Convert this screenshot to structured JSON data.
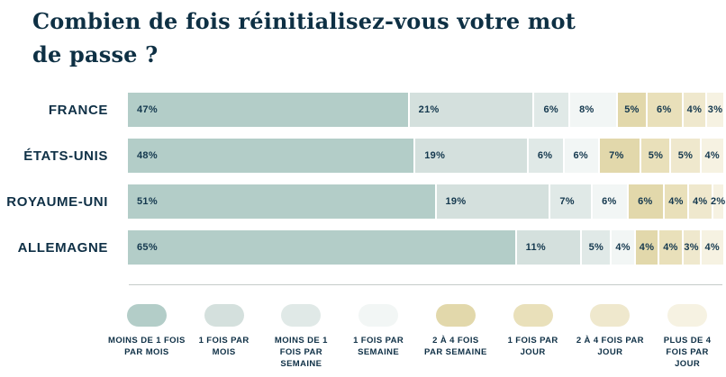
{
  "title_lines": [
    "Combien de fois réinitialisez-vous votre mot",
    "de passe ?"
  ],
  "colors": {
    "title_text": "#0e3044",
    "label_text": "#0f3046",
    "value_text": "#14384e",
    "divider": "#c5cbc9",
    "background": "#ffffff"
  },
  "chart_data": {
    "type": "bar",
    "stacked": true,
    "orientation": "horizontal",
    "title": "Combien de fois réinitialisez-vous votre mot de passe ?",
    "unit": "%",
    "xlim": [
      0,
      100
    ],
    "legend_position": "bottom",
    "categories": [
      "FRANCE",
      "ÉTATS-UNIS",
      "ROYAUME-UNI",
      "ALLEMAGNE"
    ],
    "series": [
      {
        "name": "MOINS DE 1 FOIS PAR MOIS",
        "label_lines": [
          "MOINS DE 1 FOIS",
          "PAR MOIS"
        ],
        "color": "#b3cdc8",
        "values": [
          47,
          48,
          51,
          65
        ]
      },
      {
        "name": "1 FOIS PAR MOIS",
        "label_lines": [
          "1 FOIS PAR",
          "MOIS"
        ],
        "color": "#d4e0dd",
        "values": [
          21,
          19,
          19,
          11
        ]
      },
      {
        "name": "MOINS DE 1 FOIS PAR SEMAINE",
        "label_lines": [
          "MOINS DE 1",
          "FOIS PAR",
          "SEMAINE"
        ],
        "color": "#e0e9e7",
        "values": [
          6,
          6,
          7,
          5
        ]
      },
      {
        "name": "1 FOIS PAR SEMAINE",
        "label_lines": [
          "1 FOIS PAR",
          "SEMAINE"
        ],
        "color": "#f2f6f5",
        "values": [
          8,
          6,
          6,
          4
        ]
      },
      {
        "name": "2 À 4 FOIS PAR SEMAINE",
        "label_lines": [
          "2 À 4 FOIS",
          "PAR SEMAINE"
        ],
        "color": "#e2d8ab",
        "values": [
          5,
          7,
          6,
          4
        ]
      },
      {
        "name": "1 FOIS PAR JOUR",
        "label_lines": [
          "1 FOIS PAR",
          "JOUR"
        ],
        "color": "#e9e0ba",
        "values": [
          6,
          5,
          4,
          4
        ]
      },
      {
        "name": "2 À 4 FOIS PAR JOUR",
        "label_lines": [
          "2 À 4 FOIS PAR",
          "JOUR"
        ],
        "color": "#efe8cd",
        "values": [
          4,
          5,
          4,
          3
        ]
      },
      {
        "name": "PLUS DE 4 FOIS PAR JOUR",
        "label_lines": [
          "PLUS DE 4",
          "FOIS PAR",
          "JOUR"
        ],
        "color": "#f6f2e2",
        "values": [
          3,
          4,
          2,
          4
        ]
      }
    ]
  }
}
